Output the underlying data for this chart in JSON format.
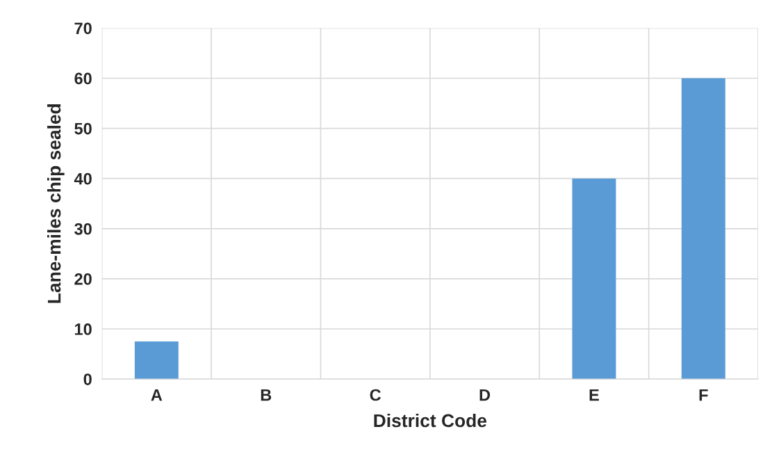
{
  "chart_data": {
    "type": "bar",
    "xlabel": "District Code",
    "ylabel": "Lane-miles chip sealed",
    "categories": [
      "A",
      "B",
      "C",
      "D",
      "E",
      "F"
    ],
    "values": [
      7.5,
      0,
      0,
      0,
      40,
      60
    ],
    "color": "#5b9bd5",
    "ylim": [
      0,
      70
    ],
    "yticks": [
      0,
      10,
      20,
      30,
      40,
      50,
      60,
      70
    ],
    "grid": true,
    "legend": false
  }
}
